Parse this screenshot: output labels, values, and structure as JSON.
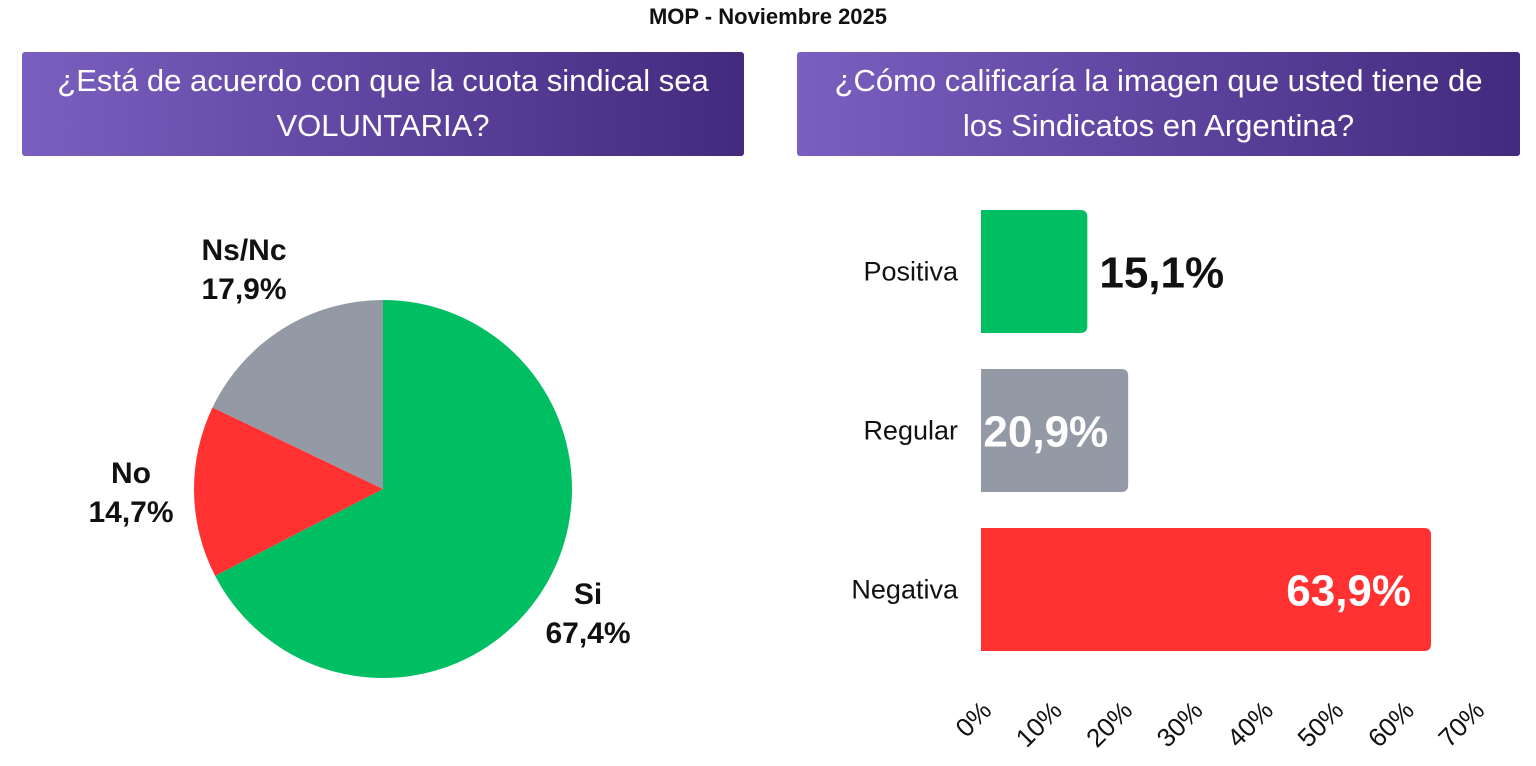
{
  "title": "MOP - Noviembre 2025",
  "colors": {
    "banner_start": "#7a5fc0",
    "banner_end": "#432a7e",
    "green": "#00bf63",
    "red": "#ff3131",
    "gray": "#939aa6",
    "text": "#111111"
  },
  "chart_data": [
    {
      "type": "pie",
      "title": "¿Está de acuerdo con que la cuota sindical sea VOLUNTARIA?",
      "slices": [
        {
          "label": "Si",
          "value": 67.4,
          "display": "67,4%",
          "color": "#00bf63"
        },
        {
          "label": "No",
          "value": 14.7,
          "display": "14,7%",
          "color": "#ff3131"
        },
        {
          "label": "Ns/Nc",
          "value": 17.9,
          "display": "17,9%",
          "color": "#939aa6"
        }
      ]
    },
    {
      "type": "bar",
      "orientation": "horizontal",
      "title": "¿Cómo calificaría la imagen que usted tiene de los Sindicatos en Argentina?",
      "categories": [
        "Positiva",
        "Regular",
        "Negativa"
      ],
      "values": [
        15.1,
        20.9,
        63.9
      ],
      "value_labels": [
        "15,1%",
        "20,9%",
        "63,9%"
      ],
      "colors": [
        "#00bf63",
        "#939aa6",
        "#ff3131"
      ],
      "xlim": [
        0,
        70
      ],
      "ticks": [
        0,
        10,
        20,
        30,
        40,
        50,
        60,
        70
      ],
      "tick_labels": [
        "0%",
        "10%",
        "20%",
        "30%",
        "40%",
        "50%",
        "60%",
        "70%"
      ],
      "grid": false
    }
  ]
}
